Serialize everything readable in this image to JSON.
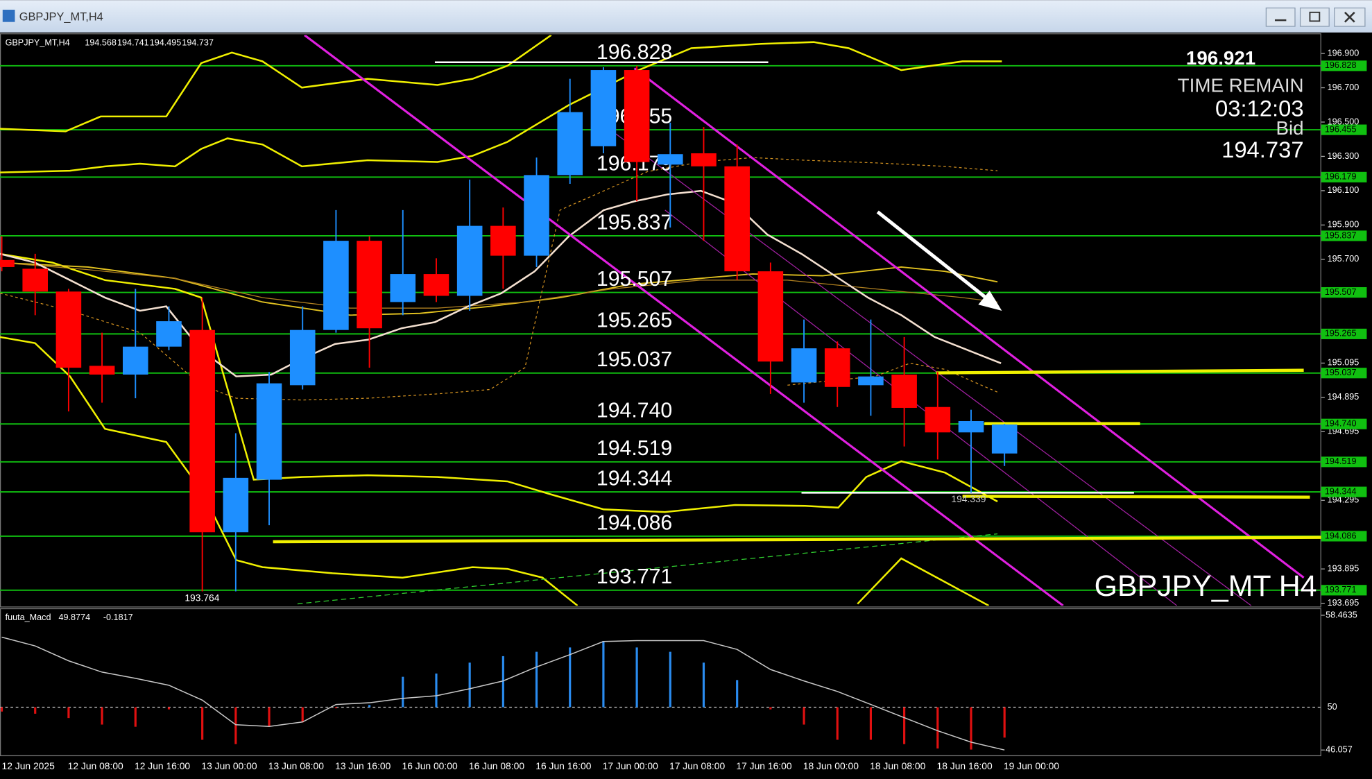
{
  "window": {
    "title": "GBPJPY_MT,H4"
  },
  "info_panel": {
    "price": 196.921,
    "time_label": "TIME REMAIN",
    "time": "03:12:03",
    "bid_label": "Bid"
  },
  "chart_data": [
    {
      "type": "candlestick",
      "symbol": "GBPJPY_MT,H4",
      "watermark": "GBPJPY_MT H4",
      "categories": [
        "12 Jun 2025",
        null,
        "12 Jun 08:00",
        null,
        "12 Jun 16:00",
        null,
        "13 Jun 00:00",
        null,
        "13 Jun 08:00",
        null,
        "13 Jun 16:00",
        null,
        "16 Jun 00:00",
        null,
        "16 Jun 08:00",
        null,
        "16 Jun 16:00",
        null,
        "17 Jun 00:00",
        null,
        "17 Jun 08:00",
        null,
        "17 Jun 16:00",
        null,
        "18 Jun 00:00",
        null,
        "18 Jun 08:00",
        null,
        "18 Jun 16:00",
        null,
        "19 Jun 00:00"
      ],
      "open": [
        195.696,
        195.645,
        195.512,
        195.079,
        195.028,
        195.191,
        195.288,
        194.109,
        194.415,
        194.966,
        195.288,
        195.808,
        195.451,
        195.614,
        195.487,
        195.895,
        195.721,
        196.191,
        196.359,
        196.803,
        196.252,
        196.318,
        196.242,
        195.63,
        194.982,
        195.181,
        194.966,
        195.028,
        194.839,
        194.691,
        194.568
      ],
      "high": [
        195.834,
        195.732,
        195.528,
        195.272,
        195.528,
        195.426,
        195.477,
        194.686,
        195.043,
        195.426,
        195.987,
        195.834,
        195.987,
        195.706,
        196.165,
        196.002,
        196.293,
        196.752,
        196.82,
        196.828,
        196.497,
        196.471,
        196.369,
        195.681,
        195.349,
        195.221,
        195.349,
        195.247,
        195.043,
        194.823,
        194.741
      ],
      "low": [
        195.63,
        195.374,
        194.813,
        194.864,
        194.89,
        195.17,
        193.764,
        193.764,
        194.15,
        194.941,
        195.272,
        195.068,
        195.374,
        195.451,
        195.4,
        195.528,
        195.655,
        196.14,
        196.318,
        196.038,
        195.885,
        195.808,
        195.579,
        194.915,
        194.864,
        194.839,
        194.788,
        194.609,
        194.533,
        194.339,
        194.495
      ],
      "close": [
        195.655,
        195.512,
        195.068,
        195.028,
        195.191,
        195.339,
        194.109,
        194.426,
        194.977,
        195.288,
        195.808,
        195.298,
        195.614,
        195.487,
        195.895,
        195.721,
        196.191,
        196.558,
        196.803,
        196.267,
        196.313,
        196.242,
        195.63,
        195.104,
        195.181,
        194.956,
        195.017,
        194.834,
        194.691,
        194.757,
        194.737
      ],
      "up_color": "#1e8fff",
      "down_color": "#ff0000",
      "ylim": [
        193.681,
        197.007
      ],
      "yticks": [
        {
          "value": 196.9,
          "label": "196.900"
        },
        {
          "value": 196.7,
          "label": "196.700"
        },
        {
          "value": 196.5,
          "label": "196.500"
        },
        {
          "value": 196.3,
          "label": "196.300"
        },
        {
          "value": 196.1,
          "label": "196.100"
        },
        {
          "value": 195.9,
          "label": "195.900"
        },
        {
          "value": 195.7,
          "label": "195.700"
        },
        195.095,
        194.895,
        194.695,
        194.295,
        193.895,
        193.695
      ],
      "levels": [
        {
          "value": 196.828,
          "label": "196.828"
        },
        {
          "value": 196.455,
          "label": "196.455"
        },
        {
          "value": 196.179,
          "label": "196.179"
        },
        {
          "value": 195.837,
          "label": "195.837"
        },
        {
          "value": 195.507,
          "label": "195.507"
        },
        {
          "value": 195.265,
          "label": "195.265"
        },
        {
          "value": 195.037,
          "label": "195.037"
        },
        {
          "value": 194.74,
          "label": "194.740"
        },
        {
          "value": 194.519,
          "label": "194.519"
        },
        {
          "value": 194.344,
          "label": "194.344"
        },
        {
          "value": 194.086,
          "label": "194.086"
        },
        {
          "value": 193.771,
          "label": "193.771"
        }
      ],
      "level_color": "#10c010"
    },
    {
      "type": "macd",
      "name": "fuuta_Macd",
      "readout": [
        49.8774,
        -0.1817
      ],
      "histogram": [
        49.6,
        49.4,
        49.0,
        48.4,
        48.2,
        49.8,
        47.0,
        46.6,
        48.2,
        48.6,
        49.9,
        50.2,
        52.8,
        53.1,
        54.1,
        54.7,
        55.1,
        55.5,
        56.1,
        55.5,
        55.1,
        54.1,
        52.5,
        49.8,
        48.4,
        47.0,
        47.0,
        46.6,
        46.2,
        46.1,
        47.2
      ],
      "signal": [
        56.45,
        55.64,
        54.27,
        53.23,
        52.66,
        52.02,
        50.65,
        48.39,
        48.23,
        48.64,
        50.25,
        50.41,
        50.81,
        51.05,
        51.7,
        52.42,
        53.71,
        54.84,
        56.05,
        56.13,
        56.13,
        56.13,
        55.32,
        53.47,
        52.42,
        51.45,
        50.25,
        49.04,
        47.83,
        46.78,
        46.06
      ],
      "up_color": "#2a8cf0",
      "down_color": "#e01010",
      "signal_color": "#c8c8c8",
      "ylim": [
        46.057,
        58.4635
      ],
      "yticks": [
        58.4635,
        46.057
      ],
      "level": 50
    }
  ]
}
